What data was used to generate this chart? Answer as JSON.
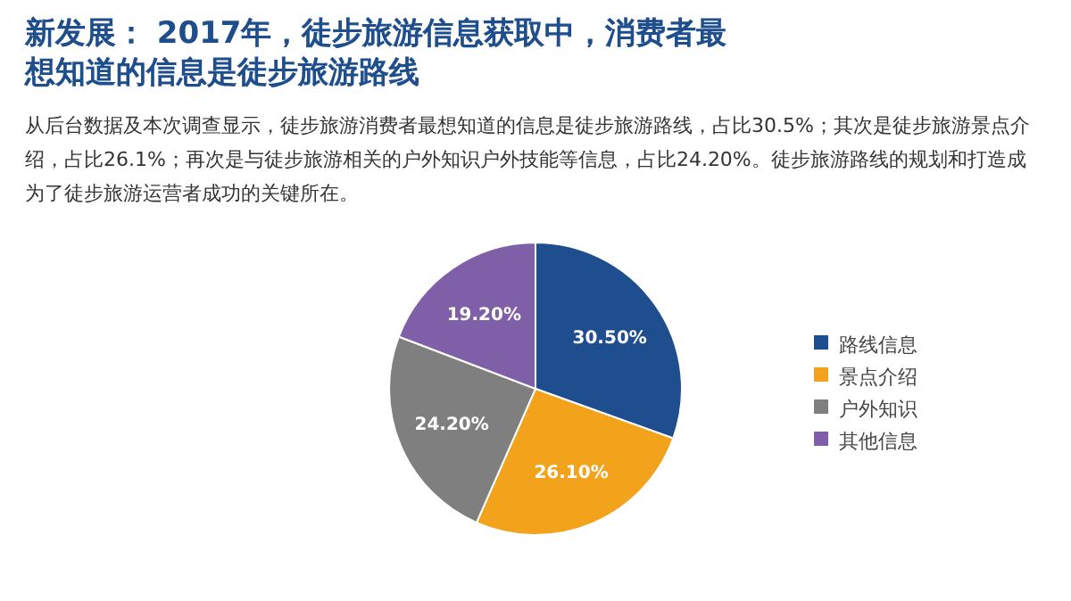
{
  "chart_data": {
    "type": "pie",
    "title": "新发展： 2017年，徒步旅游信息获取中，消费者最想知道的信息是徒步旅游路线",
    "subtitle": "从后台数据及本次调查显示，徒步旅游消费者最想知道的信息是徒步旅游路线，占比30.5%；其次是徒步旅游景点介绍，占比26.1%；再次是与徒步旅游相关的户外知识户外技能等信息，占比24.20%。徒步旅游路线的规划和打造成为了徒步旅游运营者成功的关键所在。",
    "categories": [
      "路线信息",
      "景点介绍",
      "户外知识",
      "其他信息"
    ],
    "values": [
      30.5,
      26.1,
      24.2,
      19.2
    ],
    "value_labels": [
      "30.50%",
      "26.10%",
      "24.20%",
      "19.20%"
    ],
    "colors": [
      "#1f4e8f",
      "#f2a31b",
      "#7f7f7f",
      "#7f60a8"
    ],
    "legend": "right"
  }
}
